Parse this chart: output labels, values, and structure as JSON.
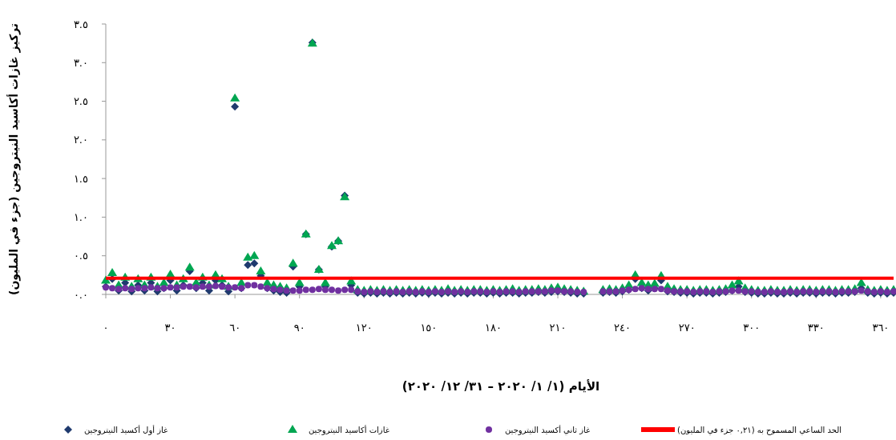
{
  "chart_data": {
    "type": "scatter",
    "xlabel": "الأيام (١/ ١/ ٢٠٢٠ – ٣١/ ١٢/ ٢٠٢٠)",
    "ylabel": "تركيز غازات أكاسيد النيتروجين (جزء في المليون)",
    "x": [
      0,
      3,
      6,
      9,
      12,
      15,
      18,
      21,
      24,
      27,
      30,
      33,
      36,
      39,
      42,
      45,
      48,
      51,
      54,
      57,
      60,
      63,
      66,
      69,
      72,
      75,
      78,
      81,
      84,
      87,
      90,
      93,
      96,
      99,
      102,
      105,
      108,
      111,
      114,
      117,
      120,
      123,
      126,
      129,
      132,
      135,
      138,
      141,
      144,
      147,
      150,
      153,
      156,
      159,
      162,
      165,
      168,
      171,
      174,
      177,
      180,
      183,
      186,
      189,
      192,
      195,
      198,
      201,
      204,
      207,
      210,
      213,
      216,
      219,
      222,
      231,
      234,
      237,
      240,
      243,
      246,
      249,
      252,
      255,
      258,
      261,
      264,
      267,
      270,
      273,
      276,
      279,
      282,
      285,
      288,
      291,
      294,
      297,
      300,
      303,
      306,
      309,
      312,
      315,
      318,
      321,
      324,
      327,
      330,
      333,
      336,
      339,
      342,
      345,
      348,
      351,
      354,
      357,
      360,
      363,
      366
    ],
    "xlim": [
      0,
      366
    ],
    "xticks": [
      {
        "value": 0,
        "label": "٠"
      },
      {
        "value": 30,
        "label": "٣٠"
      },
      {
        "value": 60,
        "label": "٦٠"
      },
      {
        "value": 90,
        "label": "٩٠"
      },
      {
        "value": 120,
        "label": "١٢٠"
      },
      {
        "value": 150,
        "label": "١٥٠"
      },
      {
        "value": 180,
        "label": "١٨٠"
      },
      {
        "value": 210,
        "label": "٢١٠"
      },
      {
        "value": 240,
        "label": "٢٤٠"
      },
      {
        "value": 270,
        "label": "٢٧٠"
      },
      {
        "value": 300,
        "label": "٣٠٠"
      },
      {
        "value": 330,
        "label": "٣٣٠"
      },
      {
        "value": 360,
        "label": "٣٦٠"
      }
    ],
    "ylim": [
      0,
      3.5
    ],
    "yticks": [
      {
        "value": 0,
        "label": "٠.٠"
      },
      {
        "value": 0.5,
        "label": "٠.٥"
      },
      {
        "value": 1,
        "label": "١.٠"
      },
      {
        "value": 1.5,
        "label": "١.٥"
      },
      {
        "value": 2,
        "label": "٢.٠"
      },
      {
        "value": 2.5,
        "label": "٢.٥"
      },
      {
        "value": 3,
        "label": "٣.٠"
      },
      {
        "value": 3.5,
        "label": "٣.٥"
      }
    ],
    "legend": "bottom",
    "series": [
      {
        "name": "غاز أول أكسيد النيتروجين",
        "color": "#1f3a6e",
        "marker": "diamond",
        "values": [
          0.1,
          0.2,
          0.05,
          0.15,
          0.04,
          0.12,
          0.05,
          0.15,
          0.04,
          0.08,
          0.18,
          0.05,
          0.12,
          0.3,
          0.08,
          0.15,
          0.05,
          0.18,
          0.12,
          0.04,
          2.43,
          0.08,
          0.38,
          0.4,
          0.24,
          0.08,
          0.05,
          0.03,
          0.02,
          0.36,
          0.1,
          0.78,
          3.26,
          0.32,
          0.1,
          0.62,
          0.69,
          1.28,
          0.12,
          0.02,
          0.01,
          0.02,
          0.01,
          0.02,
          0.01,
          0.02,
          0.01,
          0.02,
          0.01,
          0.02,
          0.01,
          0.02,
          0.01,
          0.02,
          0.01,
          0.02,
          0.01,
          0.02,
          0.02,
          0.01,
          0.02,
          0.01,
          0.02,
          0.02,
          0.01,
          0.02,
          0.02,
          0.03,
          0.02,
          0.03,
          0.04,
          0.03,
          0.02,
          0.01,
          0.01,
          0.02,
          0.03,
          0.02,
          0.04,
          0.06,
          0.2,
          0.08,
          0.05,
          0.08,
          0.18,
          0.04,
          0.03,
          0.02,
          0.02,
          0.01,
          0.02,
          0.02,
          0.01,
          0.02,
          0.03,
          0.05,
          0.1,
          0.03,
          0.02,
          0.01,
          0.01,
          0.02,
          0.01,
          0.01,
          0.02,
          0.01,
          0.02,
          0.02,
          0.01,
          0.02,
          0.02,
          0.01,
          0.02,
          0.02,
          0.03,
          0.08,
          0.02,
          0.01,
          0.02,
          0.01,
          0.02
        ]
      },
      {
        "name": "غازات أكاسيد النيتروجين",
        "color": "#00a651",
        "marker": "triangle",
        "values": [
          0.18,
          0.28,
          0.12,
          0.22,
          0.1,
          0.2,
          0.12,
          0.22,
          0.1,
          0.15,
          0.26,
          0.12,
          0.2,
          0.35,
          0.15,
          0.22,
          0.12,
          0.25,
          0.2,
          0.1,
          2.54,
          0.15,
          0.48,
          0.5,
          0.3,
          0.15,
          0.12,
          0.1,
          0.08,
          0.4,
          0.15,
          0.78,
          3.25,
          0.32,
          0.15,
          0.63,
          0.69,
          1.26,
          0.17,
          0.06,
          0.05,
          0.06,
          0.05,
          0.06,
          0.05,
          0.06,
          0.05,
          0.06,
          0.05,
          0.06,
          0.05,
          0.06,
          0.05,
          0.07,
          0.05,
          0.06,
          0.05,
          0.06,
          0.06,
          0.05,
          0.06,
          0.05,
          0.06,
          0.07,
          0.05,
          0.06,
          0.06,
          0.07,
          0.06,
          0.08,
          0.09,
          0.07,
          0.06,
          0.05,
          0.04,
          0.06,
          0.07,
          0.06,
          0.08,
          0.12,
          0.25,
          0.15,
          0.12,
          0.14,
          0.24,
          0.1,
          0.07,
          0.06,
          0.06,
          0.05,
          0.06,
          0.06,
          0.05,
          0.06,
          0.07,
          0.12,
          0.17,
          0.08,
          0.06,
          0.05,
          0.05,
          0.06,
          0.05,
          0.05,
          0.06,
          0.05,
          0.06,
          0.06,
          0.05,
          0.06,
          0.06,
          0.05,
          0.06,
          0.06,
          0.07,
          0.15,
          0.06,
          0.05,
          0.06,
          0.05,
          0.06
        ]
      },
      {
        "name": "غاز ثاني أكسيد النيتروجين",
        "color": "#7030a0",
        "marker": "circle",
        "values": [
          0.09,
          0.08,
          0.07,
          0.08,
          0.07,
          0.08,
          0.08,
          0.09,
          0.08,
          0.08,
          0.09,
          0.09,
          0.1,
          0.1,
          0.09,
          0.1,
          0.1,
          0.11,
          0.1,
          0.09,
          0.09,
          0.08,
          0.12,
          0.12,
          0.1,
          0.08,
          0.07,
          0.06,
          0.05,
          0.05,
          0.05,
          0.06,
          0.06,
          0.07,
          0.06,
          0.06,
          0.05,
          0.06,
          0.06,
          0.04,
          0.03,
          0.04,
          0.03,
          0.04,
          0.03,
          0.04,
          0.03,
          0.04,
          0.03,
          0.04,
          0.03,
          0.04,
          0.03,
          0.04,
          0.03,
          0.04,
          0.03,
          0.04,
          0.04,
          0.03,
          0.04,
          0.03,
          0.04,
          0.04,
          0.03,
          0.04,
          0.04,
          0.04,
          0.04,
          0.05,
          0.05,
          0.04,
          0.04,
          0.03,
          0.03,
          0.04,
          0.04,
          0.04,
          0.05,
          0.06,
          0.07,
          0.08,
          0.07,
          0.07,
          0.07,
          0.05,
          0.04,
          0.04,
          0.04,
          0.03,
          0.04,
          0.04,
          0.03,
          0.04,
          0.04,
          0.05,
          0.05,
          0.04,
          0.04,
          0.03,
          0.03,
          0.04,
          0.03,
          0.03,
          0.04,
          0.03,
          0.04,
          0.04,
          0.03,
          0.04,
          0.04,
          0.03,
          0.04,
          0.04,
          0.04,
          0.05,
          0.04,
          0.03,
          0.04,
          0.03,
          0.04
        ]
      }
    ],
    "ref_lines": [
      {
        "axis": "y",
        "value": 0.21,
        "label": "الحد الساعي المسموح به (٠,٢١ جزء في المليون)",
        "color": "#ff0000"
      }
    ]
  }
}
